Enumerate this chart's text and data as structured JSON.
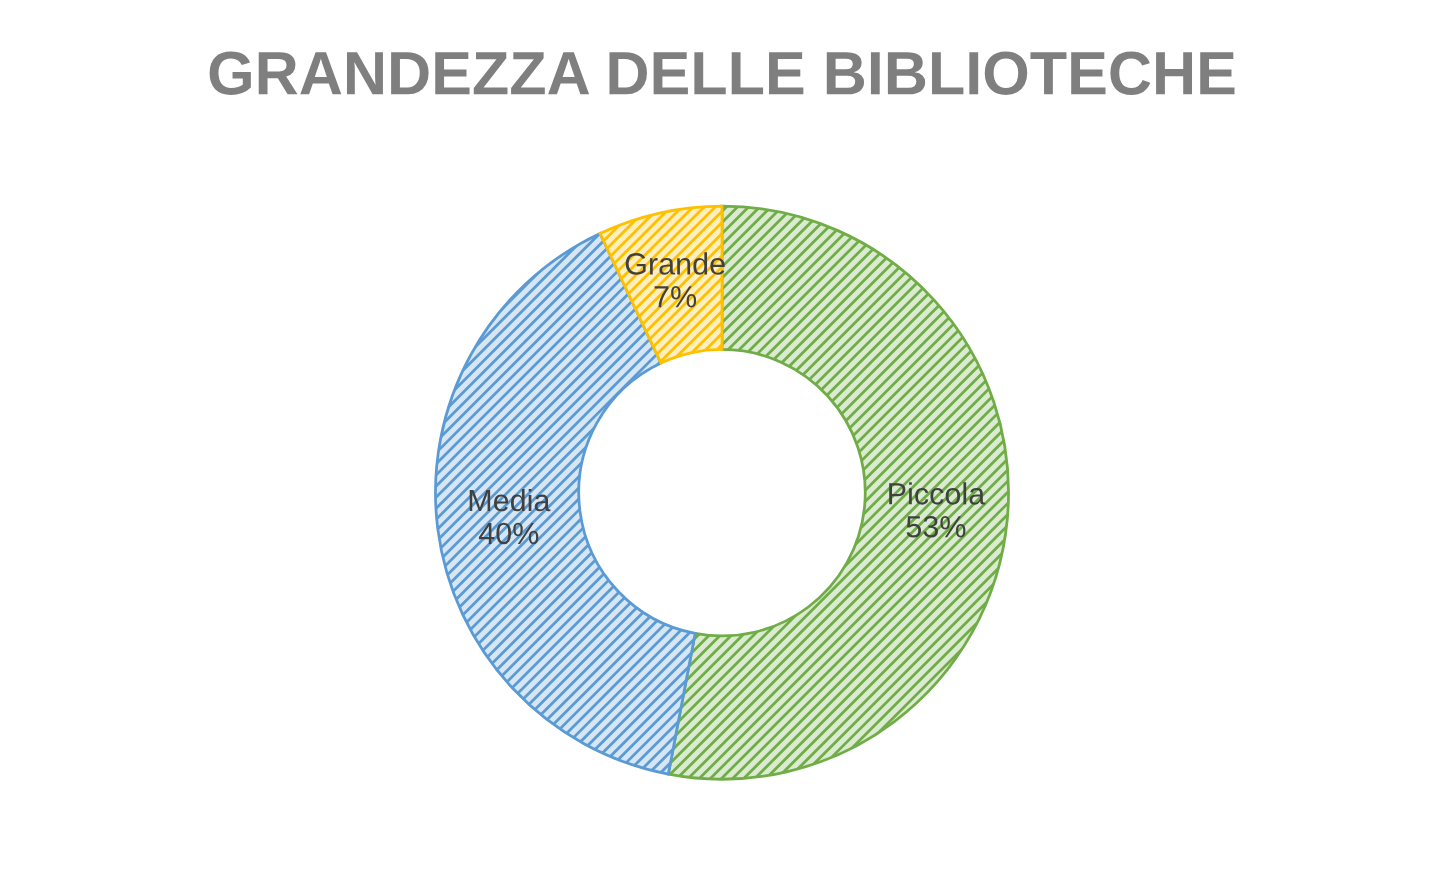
{
  "chart_data": {
    "type": "donut",
    "title": "GRANDEZZA DELLE BIBLIOTECHE",
    "categories": [
      "Piccola",
      "Media",
      "Grande"
    ],
    "values": [
      53,
      40,
      7
    ],
    "value_labels": [
      "53%",
      "40%",
      "7%"
    ],
    "colors": [
      "#70ad47",
      "#5b9bd5",
      "#ffc000"
    ],
    "legend": false
  }
}
